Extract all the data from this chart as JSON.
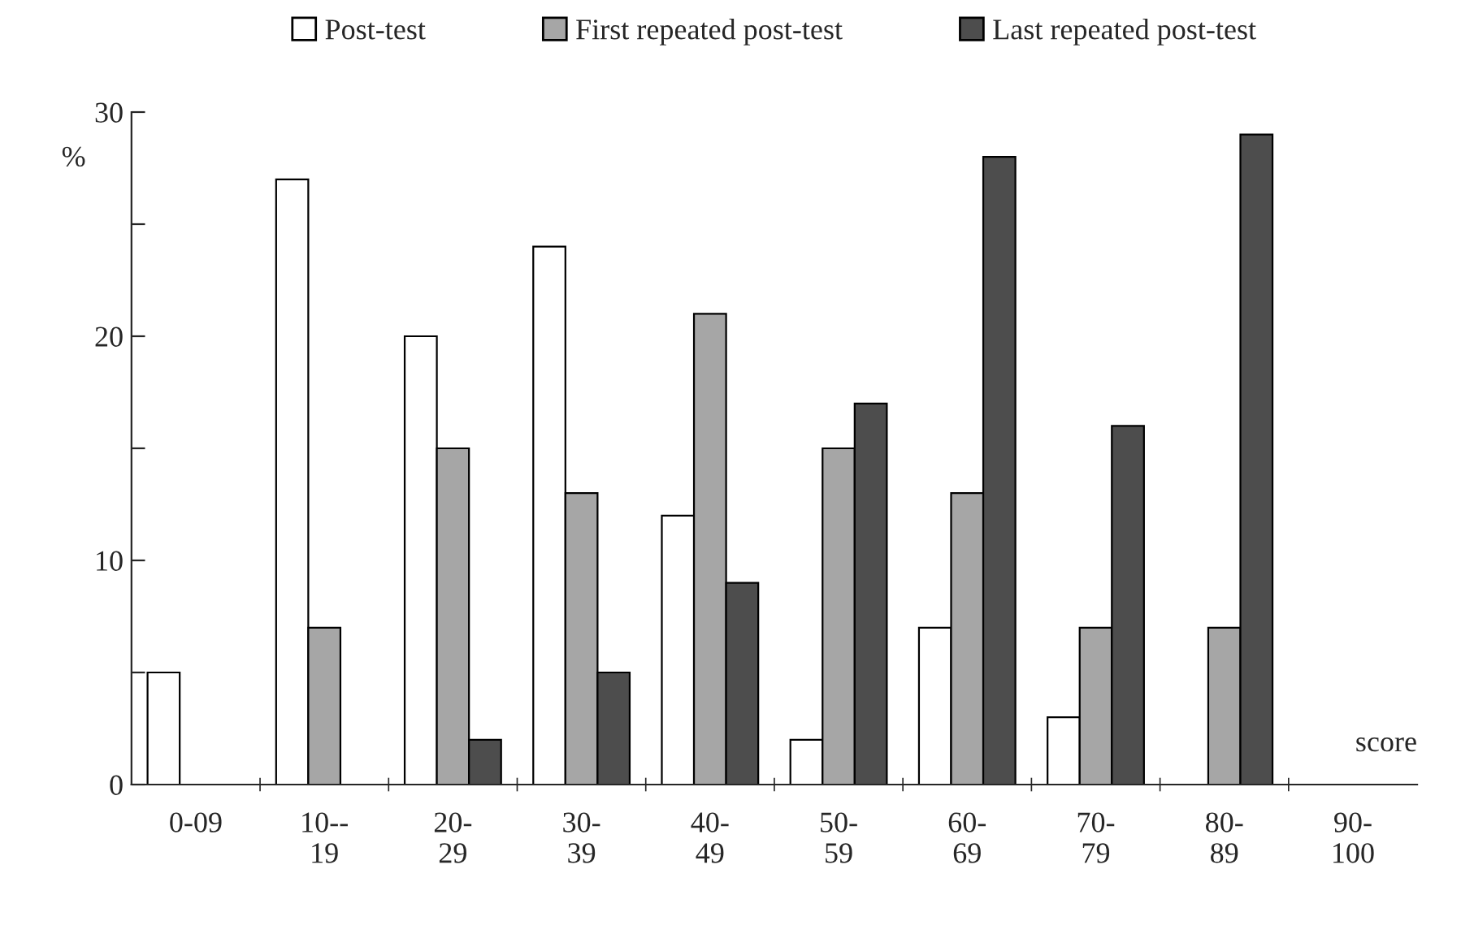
{
  "chart_data": {
    "type": "bar",
    "ylabel": "%",
    "xlabel": "score",
    "categories": [
      "0-09",
      "10--\n19",
      "20-\n29",
      "30-\n39",
      "40-\n49",
      "50-\n59",
      "60-\n69",
      "70-\n79",
      "80-\n89",
      "90-\n100"
    ],
    "series": [
      {
        "name": "Post-test",
        "color": "#ffffff",
        "values": [
          5,
          27,
          20,
          24,
          12,
          2,
          7,
          3,
          0,
          0
        ]
      },
      {
        "name": "First repeated post-test",
        "color": "#a6a6a6",
        "values": [
          0,
          7,
          15,
          13,
          21,
          15,
          13,
          7,
          7,
          0
        ]
      },
      {
        "name": "Last repeated post-test",
        "color": "#4d4d4d",
        "values": [
          0,
          0,
          2,
          5,
          9,
          17,
          28,
          16,
          29,
          0
        ]
      }
    ],
    "ylim": [
      0,
      30
    ],
    "yticks": [
      0,
      {
        "value": 5,
        "label": null
      },
      10,
      {
        "value": 15,
        "label": null
      },
      20,
      {
        "value": 25,
        "label": null
      },
      30
    ],
    "grid": false,
    "legend": "top"
  }
}
